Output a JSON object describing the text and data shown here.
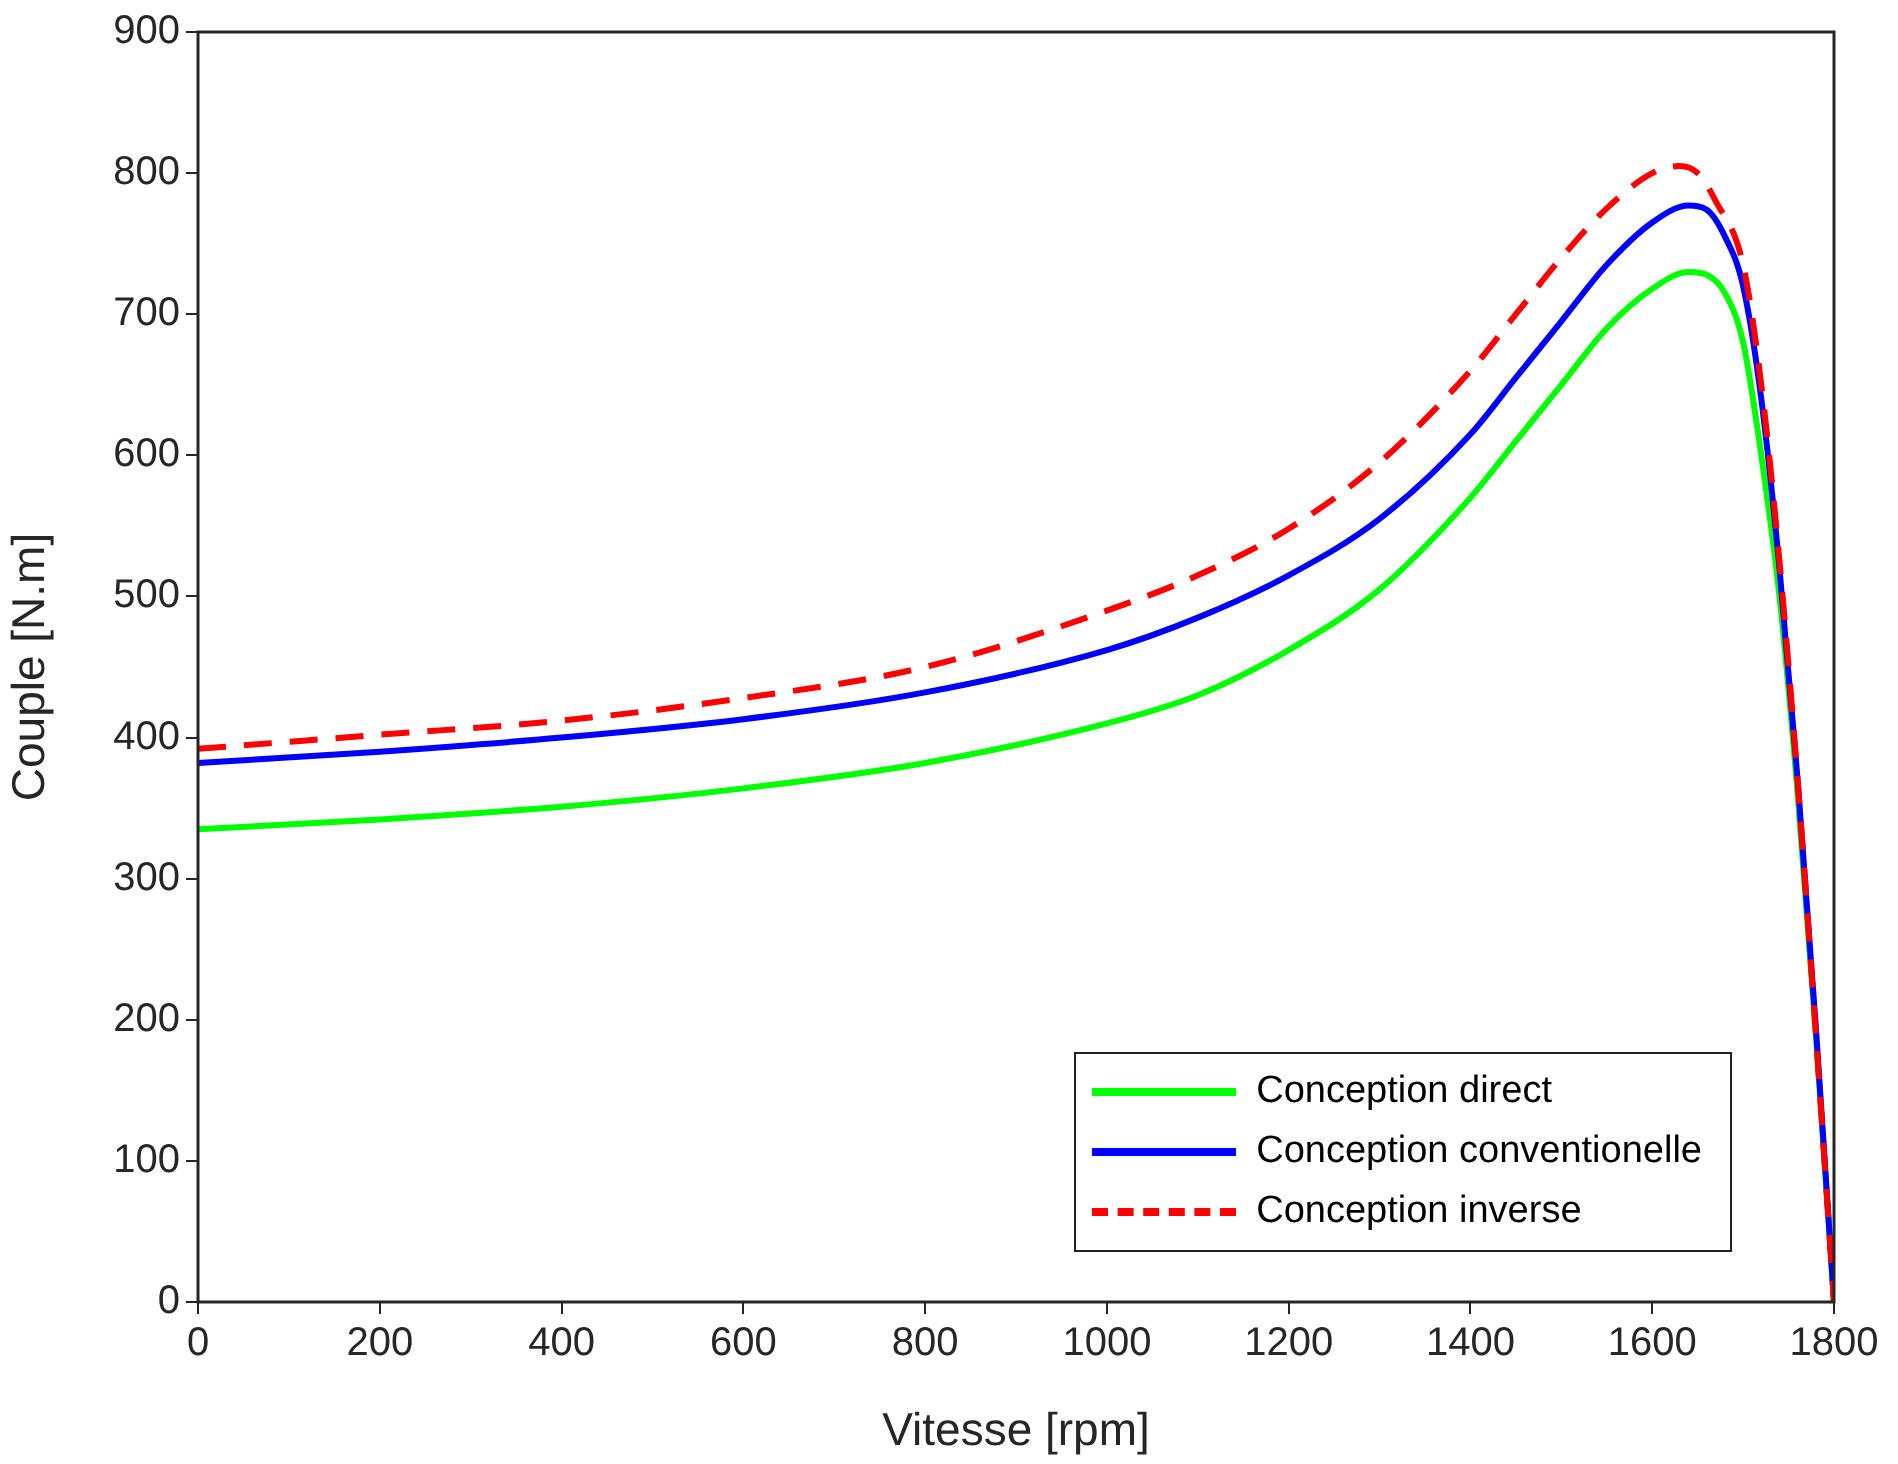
{
  "chart_data": {
    "type": "line",
    "xlabel": "Vitesse [rpm]",
    "ylabel": "Couple [N.m]",
    "x": [
      0,
      200,
      400,
      600,
      800,
      1000,
      1100,
      1200,
      1300,
      1400,
      1450,
      1500,
      1550,
      1600,
      1630,
      1650,
      1670,
      1700,
      1720,
      1740,
      1760,
      1780,
      1800
    ],
    "series": [
      {
        "name": "Conception direct",
        "color": "#00ff00",
        "line_style": "solid",
        "x": [
          0,
          200,
          400,
          600,
          800,
          1000,
          1100,
          1200,
          1300,
          1400,
          1450,
          1500,
          1550,
          1600,
          1640,
          1660,
          1680,
          1700,
          1720,
          1740,
          1760,
          1780,
          1800
        ],
        "values": [
          335,
          342,
          351,
          364,
          382,
          410,
          430,
          462,
          505,
          570,
          610,
          650,
          690,
          718,
          730,
          728,
          715,
          680,
          600,
          500,
          360,
          190,
          0
        ]
      },
      {
        "name": "Conception conventionelle",
        "color": "#0000ff",
        "line_style": "solid",
        "x": [
          0,
          200,
          400,
          600,
          800,
          1000,
          1100,
          1200,
          1300,
          1400,
          1450,
          1500,
          1550,
          1600,
          1640,
          1660,
          1680,
          1700,
          1720,
          1740,
          1760,
          1780,
          1800
        ],
        "values": [
          382,
          390,
          400,
          413,
          432,
          462,
          485,
          515,
          555,
          615,
          655,
          695,
          735,
          765,
          777,
          774,
          755,
          720,
          640,
          520,
          370,
          195,
          0
        ]
      },
      {
        "name": "Conception inverse",
        "color": "#ff0000",
        "line_style": "dashed",
        "values": [
          392,
          402,
          412,
          428,
          450,
          490,
          515,
          548,
          595,
          660,
          700,
          740,
          775,
          800,
          805,
          800,
          780,
          735,
          650,
          525,
          370,
          190,
          0
        ]
      }
    ],
    "xlim": [
      0,
      1800
    ],
    "xticks": [
      0,
      200,
      400,
      600,
      800,
      1000,
      1200,
      1400,
      1600,
      1800
    ],
    "ylim": [
      0,
      900
    ],
    "yticks": [
      0,
      100,
      200,
      300,
      400,
      500,
      600,
      700,
      800,
      900
    ],
    "grid": false,
    "legend": "bottom right",
    "marker": "none"
  }
}
